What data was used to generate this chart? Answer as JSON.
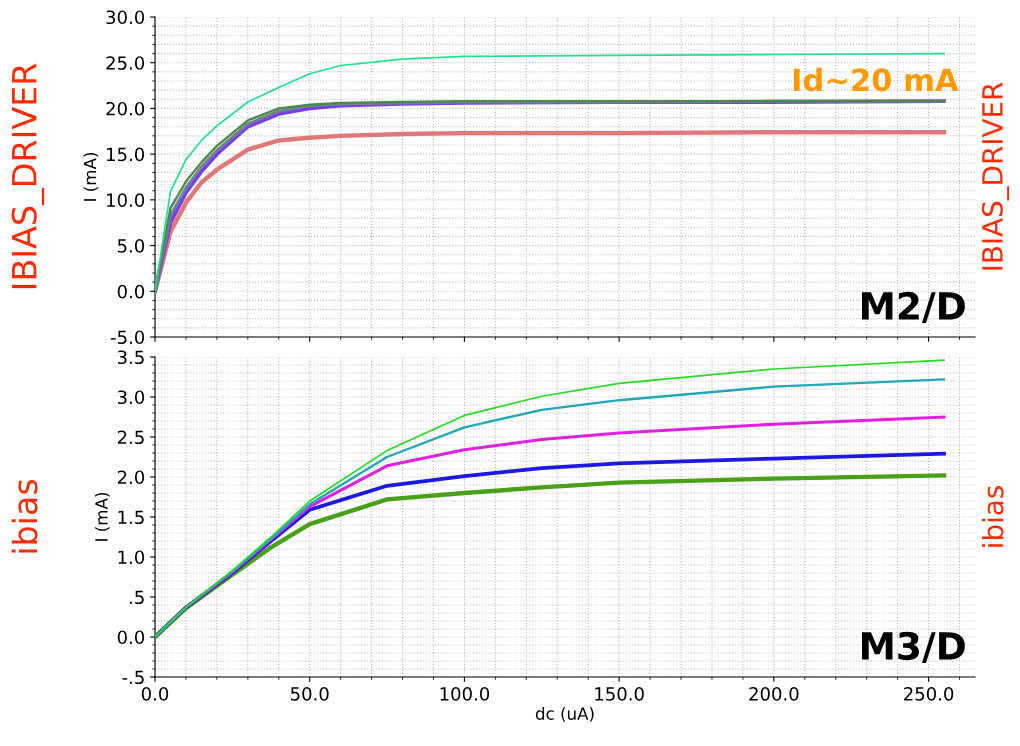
{
  "chart_data": [
    {
      "type": "line",
      "ylabel": "I (mA)",
      "annotations": [
        "IBIAS_DRIVER",
        "IBIAS_DRIVER",
        "M2/D",
        "Id~20 mA"
      ],
      "x": [
        0,
        5,
        10,
        15,
        20,
        30,
        40,
        50,
        60,
        80,
        100,
        150,
        200,
        255
      ],
      "series": [
        {
          "color": "#20e090",
          "values": [
            0,
            10.9,
            14.4,
            16.5,
            18.1,
            20.7,
            22.3,
            23.8,
            24.7,
            25.4,
            25.7,
            25.8,
            25.9,
            26.0
          ]
        },
        {
          "color": "#4a8a4a",
          "values": [
            0,
            9.1,
            12.0,
            14.1,
            15.9,
            18.7,
            20.0,
            20.4,
            20.6,
            20.7,
            20.8,
            20.8,
            20.8,
            20.8
          ]
        },
        {
          "color": "#708090",
          "values": [
            0,
            8.3,
            11.3,
            13.6,
            15.4,
            18.3,
            19.7,
            20.3,
            20.5,
            20.6,
            20.7,
            20.7,
            20.8,
            20.8
          ]
        },
        {
          "color": "#7a3cf0",
          "values": [
            0,
            7.5,
            10.8,
            13.1,
            15.0,
            18.0,
            19.4,
            20.0,
            20.3,
            20.5,
            20.6,
            20.7,
            20.7,
            20.8
          ]
        },
        {
          "color": "#e07878",
          "values": [
            0,
            6.5,
            9.7,
            11.9,
            13.3,
            15.5,
            16.5,
            16.8,
            17.0,
            17.2,
            17.3,
            17.3,
            17.4,
            17.4
          ]
        }
      ],
      "xlim": [
        0,
        265
      ],
      "xticks": [
        0,
        50,
        100,
        150,
        200,
        250
      ],
      "ylim": [
        -5,
        30
      ],
      "yticks": [
        {
          "value": -5,
          "label": "-5.0"
        },
        {
          "value": 0,
          "label": "0.0"
        },
        {
          "value": 5,
          "label": "5.0"
        },
        {
          "value": 10,
          "label": "10.0"
        },
        {
          "value": 15,
          "label": "15.0"
        },
        {
          "value": 20,
          "label": "20.0"
        },
        {
          "value": 25,
          "label": "25.0"
        },
        {
          "value": 30,
          "label": "30.0"
        }
      ],
      "tick_labels": "y",
      "grid": true,
      "legend": false
    },
    {
      "type": "line",
      "ylabel": "I (mA)",
      "xlabel": "dc (uA)",
      "annotations": [
        "ibias",
        "ibias",
        "M3/D"
      ],
      "x": [
        0,
        10,
        25,
        37.5,
        50,
        75,
        100,
        125,
        150,
        200,
        255
      ],
      "series": [
        {
          "color": "#22dd22",
          "values": [
            0,
            0.37,
            0.83,
            1.25,
            1.7,
            2.33,
            2.77,
            3.01,
            3.17,
            3.35,
            3.46
          ]
        },
        {
          "color": "#20a8b8",
          "values": [
            0,
            0.37,
            0.82,
            1.23,
            1.66,
            2.25,
            2.62,
            2.84,
            2.96,
            3.13,
            3.22
          ]
        },
        {
          "color": "#e020e0",
          "values": [
            0,
            0.37,
            0.81,
            1.22,
            1.63,
            2.14,
            2.34,
            2.47,
            2.55,
            2.66,
            2.75
          ]
        },
        {
          "color": "#1a1ae0",
          "values": [
            0,
            0.37,
            0.8,
            1.2,
            1.59,
            1.89,
            2.01,
            2.11,
            2.17,
            2.23,
            2.29
          ]
        },
        {
          "color": "#4aa018",
          "values": [
            0,
            0.36,
            0.78,
            1.12,
            1.41,
            1.72,
            1.8,
            1.87,
            1.93,
            1.98,
            2.02
          ]
        }
      ],
      "xlim": [
        0,
        265
      ],
      "xticks": [
        {
          "value": 0,
          "label": "0.0"
        },
        {
          "value": 50,
          "label": "50.0"
        },
        {
          "value": 100,
          "label": "100.0"
        },
        {
          "value": 150,
          "label": "150.0"
        },
        {
          "value": 200,
          "label": "200.0"
        },
        {
          "value": 250,
          "label": "250.0"
        }
      ],
      "ylim": [
        -0.5,
        3.5
      ],
      "yticks": [
        {
          "value": -0.5,
          "label": "-.5"
        },
        {
          "value": 0,
          "label": "0.0"
        },
        {
          "value": 0.5,
          "label": ".5"
        },
        {
          "value": 1,
          "label": "1.0"
        },
        {
          "value": 1.5,
          "label": "1.5"
        },
        {
          "value": 2,
          "label": "2.0"
        },
        {
          "value": 2.5,
          "label": "2.5"
        },
        {
          "value": 3,
          "label": "3.0"
        },
        {
          "value": 3.5,
          "label": "3.5"
        }
      ],
      "grid": true,
      "legend": false
    }
  ]
}
